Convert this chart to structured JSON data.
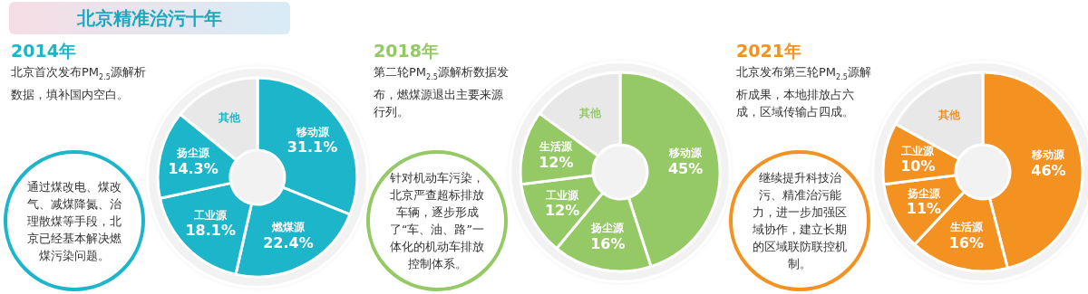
{
  "chart_data": [
    {
      "type": "donut",
      "title": "北京精准治污十年",
      "subtitle": "2014年",
      "annotations": [
        "北京首次发布PM$_{2.5}$源解析数据，填补国内空白。",
        "通过煤改电、煤改气、减煤降氮、治理散煤等手段，北京已经基本解决燃煤污染问题。"
      ],
      "categories": [
        "移动源",
        "燃煤源",
        "工业源",
        "扬尘源",
        "其他"
      ],
      "values": [
        31.1,
        22.4,
        18.1,
        14.3,
        14.1
      ],
      "value_labels": [
        "31.1%",
        "22.4%",
        "18.1%",
        "14.3%",
        null
      ],
      "colors": [
        "#1cb5c9",
        "#1cb5c9",
        "#1cb5c9",
        "#1cb5c9",
        "#e8e8e8"
      ]
    },
    {
      "type": "donut",
      "subtitle": "2018年",
      "annotations": [
        "第二轮PM$_{2.5}$源解析数据发布，燃煤源退出主要来源行列。",
        "针对机动车污染，北京严查超标排放车辆，逐步形成了“车、油、路”一体化的机动车排放控制体系。"
      ],
      "categories": [
        "移动源",
        "扬尘源",
        "工业源",
        "生活源",
        "其他"
      ],
      "values": [
        45,
        16,
        12,
        12,
        15
      ],
      "value_labels": [
        "45%",
        "16%",
        "12%",
        "12%",
        null
      ],
      "colors": [
        "#94c966",
        "#94c966",
        "#94c966",
        "#94c966",
        "#e8e8e8"
      ]
    },
    {
      "type": "donut",
      "subtitle": "2021年",
      "annotations": [
        "北京发布第三轮PM$_{2.5}$源解析成果，本地排放占六成，区域传输占四成。",
        "继续提升科技治污、精准治污能力，进一步加强区域协作，建立长期的区域联防联控机制。"
      ],
      "categories": [
        "移动源",
        "生活源",
        "扬尘源",
        "工业源",
        "其他"
      ],
      "values": [
        46,
        16,
        11,
        10,
        17
      ],
      "value_labels": [
        "46%",
        "16%",
        "11%",
        "10%",
        null
      ],
      "colors": [
        "#f39121",
        "#f39121",
        "#f39121",
        "#f39121",
        "#e8e8e8"
      ]
    }
  ]
}
